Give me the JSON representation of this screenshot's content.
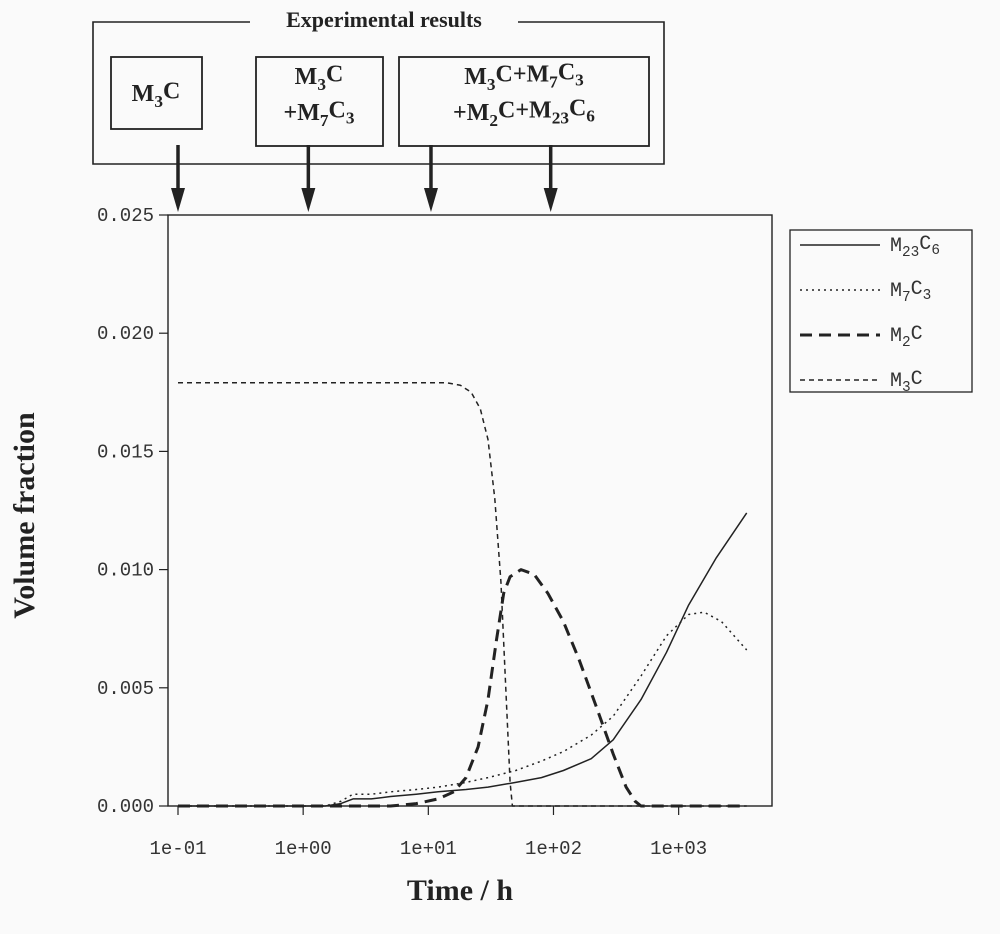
{
  "annotation": {
    "title": "Experimental results",
    "boxes": [
      {
        "id": "b1",
        "lines": [
          [
            {
              "t": "M"
            },
            {
              "s": "3"
            },
            {
              "t": "C"
            }
          ]
        ]
      },
      {
        "id": "b2",
        "lines": [
          [
            {
              "t": "M"
            },
            {
              "s": "3"
            },
            {
              "t": "C"
            }
          ],
          [
            {
              "t": "+M"
            },
            {
              "s": "7"
            },
            {
              "t": "C"
            },
            {
              "s": "3"
            }
          ]
        ]
      },
      {
        "id": "b3",
        "lines": [
          [
            {
              "t": "M"
            },
            {
              "s": "3"
            },
            {
              "t": "C+M"
            },
            {
              "s": "7"
            },
            {
              "t": "C"
            },
            {
              "s": "3"
            }
          ],
          [
            {
              "t": "+M"
            },
            {
              "s": "2"
            },
            {
              "t": "C+M"
            },
            {
              "s": "23"
            },
            {
              "t": "C"
            },
            {
              "s": "6"
            }
          ]
        ]
      }
    ],
    "arrow_times_h": [
      0.1,
      1.1,
      10.5,
      95
    ]
  },
  "chart_data": {
    "type": "line",
    "xlabel": "Time / h",
    "ylabel": "Volume fraction",
    "xscale": "log",
    "xlim": [
      0.1,
      4000
    ],
    "ylim": [
      0,
      0.025
    ],
    "x_ticks": [
      {
        "value": 0.1,
        "label": "1e-01"
      },
      {
        "value": 1,
        "label": "1e+00"
      },
      {
        "value": 10,
        "label": "1e+01"
      },
      {
        "value": 100,
        "label": "1e+02"
      },
      {
        "value": 1000,
        "label": "1e+03"
      }
    ],
    "y_ticks": [
      {
        "value": 0,
        "label": "0.000"
      },
      {
        "value": 0.005,
        "label": "0.005"
      },
      {
        "value": 0.01,
        "label": "0.010"
      },
      {
        "value": 0.015,
        "label": "0.015"
      },
      {
        "value": 0.02,
        "label": "0.020"
      },
      {
        "value": 0.025,
        "label": "0.025"
      }
    ],
    "grid": false,
    "legend_position": "right",
    "series": [
      {
        "name_parts": [
          {
            "t": "M"
          },
          {
            "s": "23"
          },
          {
            "t": "C"
          },
          {
            "s": "6"
          }
        ],
        "style": "solid",
        "stroke_width": 1.5,
        "color": "#222222",
        "x": [
          0.1,
          1.5,
          2.0,
          2.5,
          3.5,
          5,
          8,
          12,
          20,
          30,
          50,
          80,
          120,
          200,
          300,
          500,
          800,
          1200,
          2000,
          3500
        ],
        "y": [
          0,
          0,
          0.0001,
          0.0003,
          0.0003,
          0.0004,
          0.0005,
          0.0006,
          0.0007,
          0.0008,
          0.001,
          0.0012,
          0.0015,
          0.002,
          0.0028,
          0.0045,
          0.0065,
          0.0085,
          0.0105,
          0.0124
        ]
      },
      {
        "name_parts": [
          {
            "t": "M"
          },
          {
            "s": "7"
          },
          {
            "t": "C"
          },
          {
            "s": "3"
          }
        ],
        "style": "dotted",
        "stroke_width": 1.5,
        "color": "#222222",
        "x": [
          0.1,
          1.5,
          2.0,
          2.5,
          3.5,
          5,
          8,
          12,
          20,
          30,
          50,
          80,
          120,
          200,
          300,
          500,
          800,
          1200,
          1600,
          2200,
          3500
        ],
        "y": [
          0,
          0,
          0.0002,
          0.0005,
          0.0005,
          0.0006,
          0.0007,
          0.0008,
          0.001,
          0.0012,
          0.0015,
          0.0019,
          0.0023,
          0.003,
          0.0038,
          0.0055,
          0.0072,
          0.0081,
          0.0082,
          0.0078,
          0.0066
        ]
      },
      {
        "name_parts": [
          {
            "t": "M"
          },
          {
            "s": "2"
          },
          {
            "t": "C"
          }
        ],
        "style": "bold-dashed",
        "stroke_width": 3,
        "color": "#222222",
        "x": [
          0.1,
          5,
          8,
          12,
          16,
          20,
          25,
          30,
          35,
          40,
          45,
          55,
          70,
          90,
          120,
          160,
          220,
          300,
          380,
          450,
          500,
          600,
          3500
        ],
        "y": [
          0,
          0,
          0.0001,
          0.0003,
          0.0006,
          0.0012,
          0.0025,
          0.0045,
          0.007,
          0.009,
          0.0097,
          0.01,
          0.0098,
          0.009,
          0.0078,
          0.0062,
          0.0042,
          0.0022,
          0.0008,
          0.0002,
          0,
          0,
          0
        ]
      },
      {
        "name_parts": [
          {
            "t": "M"
          },
          {
            "s": "3"
          },
          {
            "t": "C"
          }
        ],
        "style": "dashed",
        "stroke_width": 1.5,
        "color": "#222222",
        "x": [
          0.1,
          1,
          10,
          14,
          18,
          22,
          26,
          30,
          34,
          38,
          42,
          45,
          47,
          3500
        ],
        "y": [
          0.0179,
          0.0179,
          0.0179,
          0.0179,
          0.0178,
          0.0175,
          0.0168,
          0.0155,
          0.013,
          0.0095,
          0.0045,
          0.001,
          0,
          0
        ]
      }
    ]
  }
}
